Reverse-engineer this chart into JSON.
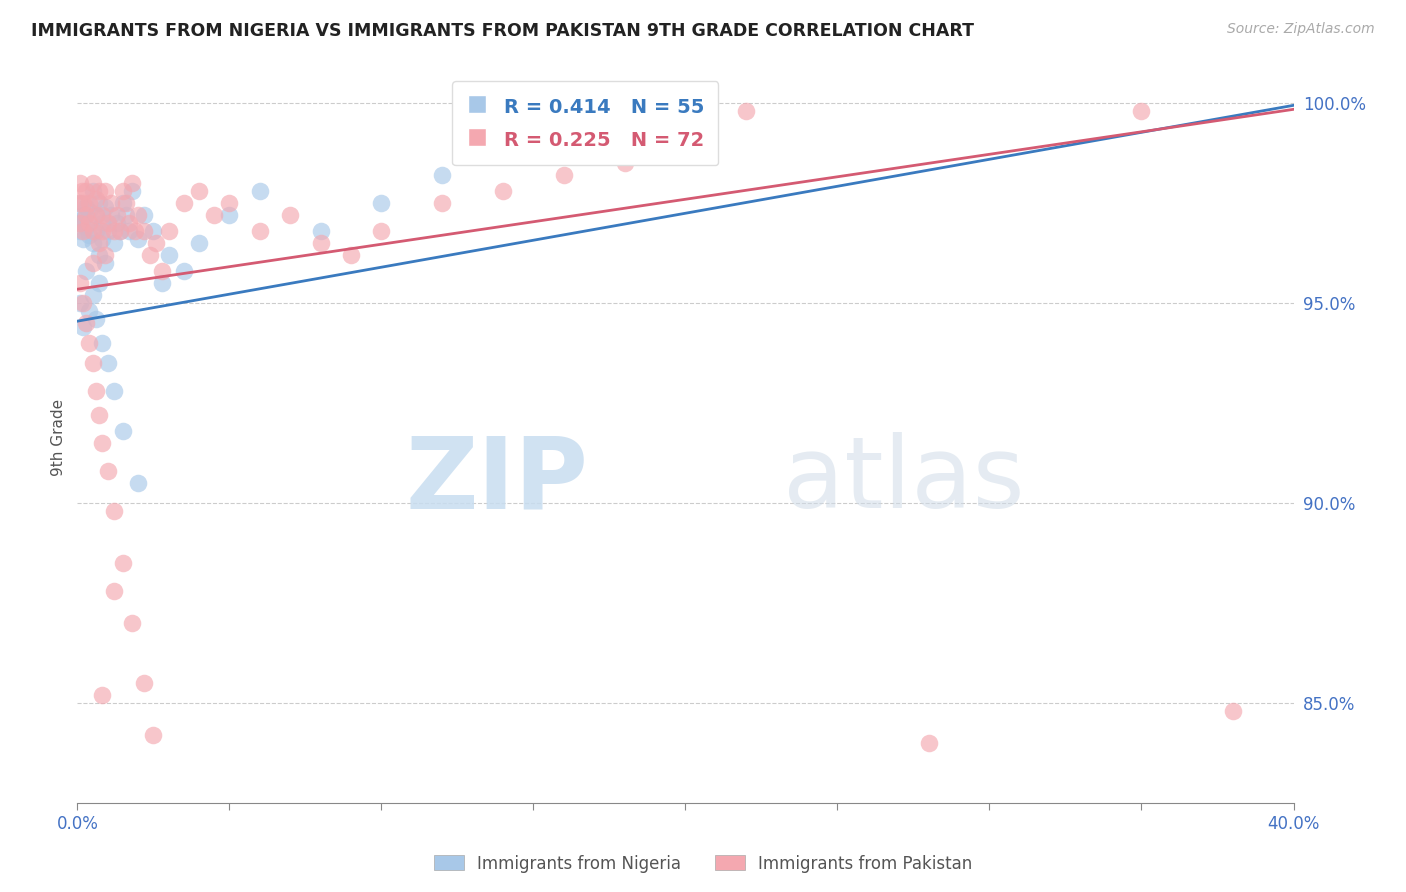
{
  "title": "IMMIGRANTS FROM NIGERIA VS IMMIGRANTS FROM PAKISTAN 9TH GRADE CORRELATION CHART",
  "source": "Source: ZipAtlas.com",
  "ylabel": "9th Grade",
  "legend_label1": "Immigrants from Nigeria",
  "legend_label2": "Immigrants from Pakistan",
  "R1": 0.414,
  "N1": 55,
  "R2": 0.225,
  "N2": 72,
  "color1": "#a8c8e8",
  "color2": "#f4a8b0",
  "line_color1": "#3a7abf",
  "line_color2": "#d45a72",
  "xmin": 0.0,
  "xmax": 0.4,
  "ymin": 0.825,
  "ymax": 1.008,
  "yticks": [
    0.85,
    0.9,
    0.95,
    1.0
  ],
  "xtick_labels_show": [
    0.0,
    0.4
  ],
  "xticks_minor": [
    0.05,
    0.1,
    0.15,
    0.2,
    0.25,
    0.3,
    0.35
  ],
  "watermark_zip": "ZIP",
  "watermark_atlas": "atlas",
  "nigeria_x": [
    0.0005,
    0.001,
    0.001,
    0.0015,
    0.002,
    0.002,
    0.003,
    0.003,
    0.004,
    0.004,
    0.005,
    0.005,
    0.006,
    0.006,
    0.007,
    0.007,
    0.008,
    0.008,
    0.009,
    0.009,
    0.01,
    0.011,
    0.012,
    0.013,
    0.014,
    0.015,
    0.016,
    0.017,
    0.018,
    0.02,
    0.022,
    0.025,
    0.028,
    0.03,
    0.035,
    0.04,
    0.05,
    0.06,
    0.08,
    0.1,
    0.12,
    0.14,
    0.16,
    0.001,
    0.002,
    0.003,
    0.004,
    0.005,
    0.006,
    0.007,
    0.008,
    0.01,
    0.012,
    0.015,
    0.02
  ],
  "nigeria_y": [
    0.97,
    0.975,
    0.968,
    0.972,
    0.971,
    0.966,
    0.974,
    0.969,
    0.973,
    0.967,
    0.965,
    0.978,
    0.968,
    0.972,
    0.975,
    0.962,
    0.97,
    0.966,
    0.974,
    0.96,
    0.968,
    0.972,
    0.965,
    0.97,
    0.968,
    0.975,
    0.972,
    0.968,
    0.978,
    0.966,
    0.972,
    0.968,
    0.955,
    0.962,
    0.958,
    0.965,
    0.972,
    0.978,
    0.968,
    0.975,
    0.982,
    0.988,
    0.992,
    0.95,
    0.944,
    0.958,
    0.948,
    0.952,
    0.946,
    0.955,
    0.94,
    0.935,
    0.928,
    0.918,
    0.905
  ],
  "pakistan_x": [
    0.0005,
    0.001,
    0.001,
    0.0015,
    0.002,
    0.002,
    0.003,
    0.003,
    0.004,
    0.004,
    0.005,
    0.005,
    0.006,
    0.006,
    0.007,
    0.007,
    0.008,
    0.008,
    0.009,
    0.009,
    0.01,
    0.011,
    0.012,
    0.013,
    0.014,
    0.015,
    0.016,
    0.017,
    0.018,
    0.019,
    0.02,
    0.022,
    0.024,
    0.026,
    0.028,
    0.03,
    0.035,
    0.04,
    0.045,
    0.05,
    0.06,
    0.07,
    0.08,
    0.09,
    0.1,
    0.12,
    0.14,
    0.16,
    0.18,
    0.2,
    0.001,
    0.002,
    0.003,
    0.004,
    0.005,
    0.006,
    0.007,
    0.008,
    0.01,
    0.012,
    0.015,
    0.018,
    0.022,
    0.025,
    0.15,
    0.22,
    0.28,
    0.35,
    0.38,
    0.005,
    0.008,
    0.012
  ],
  "pakistan_y": [
    0.975,
    0.98,
    0.97,
    0.978,
    0.975,
    0.968,
    0.978,
    0.972,
    0.975,
    0.97,
    0.968,
    0.98,
    0.972,
    0.976,
    0.978,
    0.965,
    0.972,
    0.968,
    0.978,
    0.962,
    0.97,
    0.975,
    0.968,
    0.972,
    0.968,
    0.978,
    0.975,
    0.97,
    0.98,
    0.968,
    0.972,
    0.968,
    0.962,
    0.965,
    0.958,
    0.968,
    0.975,
    0.978,
    0.972,
    0.975,
    0.968,
    0.972,
    0.965,
    0.962,
    0.968,
    0.975,
    0.978,
    0.982,
    0.985,
    0.99,
    0.955,
    0.95,
    0.945,
    0.94,
    0.935,
    0.928,
    0.922,
    0.915,
    0.908,
    0.898,
    0.885,
    0.87,
    0.855,
    0.842,
    0.995,
    0.998,
    0.84,
    0.998,
    0.848,
    0.96,
    0.852,
    0.878
  ],
  "nigeria_line": [
    0.9455,
    0.9995
  ],
  "pakistan_line": [
    0.9535,
    0.9985
  ]
}
